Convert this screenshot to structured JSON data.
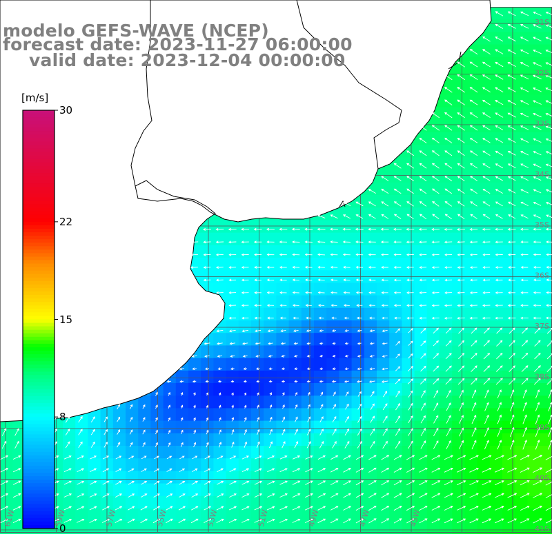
{
  "header": {
    "model_line": "modelo GEFS-WAVE (NCEP)",
    "forecast_line": "forecast date: 2023-11-27 06:00:00",
    "valid_line": "valid date: 2023-12-04 00:00:00"
  },
  "colorbar": {
    "unit_label": "[m/s]",
    "min": 0,
    "max": 30,
    "tick_labels": [
      "30",
      "22",
      "15",
      "8",
      "0"
    ],
    "tick_values": [
      30,
      22,
      15,
      8,
      0
    ],
    "stops": [
      {
        "value": 0,
        "color": "#0000ff"
      },
      {
        "value": 4,
        "color": "#008cff"
      },
      {
        "value": 8,
        "color": "#00ffff"
      },
      {
        "value": 11,
        "color": "#00ff80"
      },
      {
        "value": 13,
        "color": "#00ff00"
      },
      {
        "value": 15,
        "color": "#ffff00"
      },
      {
        "value": 19,
        "color": "#ff8c00"
      },
      {
        "value": 22,
        "color": "#ff0000"
      },
      {
        "value": 30,
        "color": "#c8107a"
      }
    ]
  },
  "map": {
    "quantity": "wind speed",
    "grid_lines": true,
    "land_color": "#ffffff",
    "coastline_color": "#000000",
    "arrow_color": "#ffffff",
    "lon_labels": [
      "61W",
      "59W",
      "57W",
      "55W",
      "53W",
      "51W",
      "49W",
      "47W",
      "45W"
    ],
    "lat_labels": [
      "31S",
      "32S",
      "33S",
      "34S",
      "35S",
      "36S",
      "37S",
      "38S",
      "39S",
      "40S",
      "41S"
    ]
  }
}
